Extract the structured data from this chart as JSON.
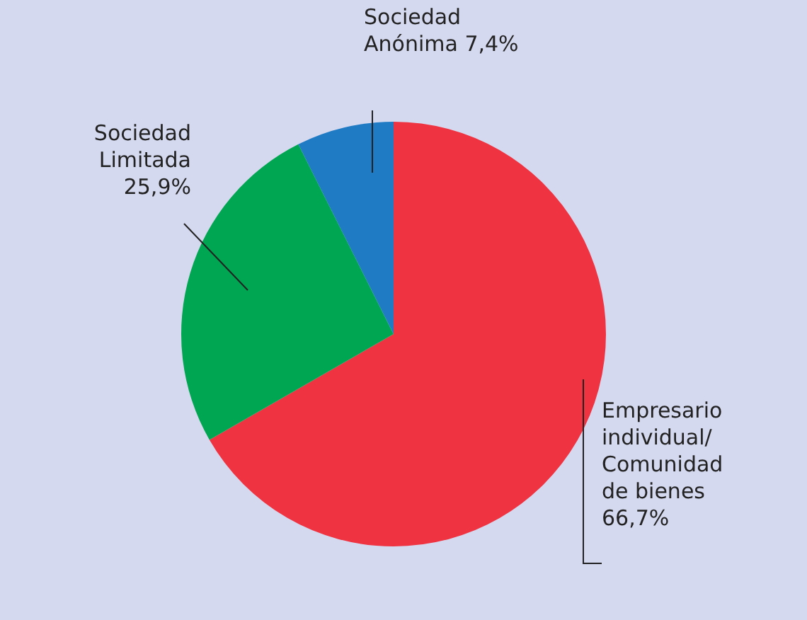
{
  "chart_data": {
    "type": "pie",
    "categories": [
      "Empresario individual/ Comunidad de bienes",
      "Sociedad Limitada",
      "Sociedad Anónima"
    ],
    "values": [
      66.7,
      25.9,
      7.4
    ],
    "value_labels": [
      "66,7%",
      "25,9%",
      "7,4%"
    ],
    "colors": [
      "#ef3340",
      "#00a651",
      "#1f7bc4"
    ],
    "legend": false
  }
}
